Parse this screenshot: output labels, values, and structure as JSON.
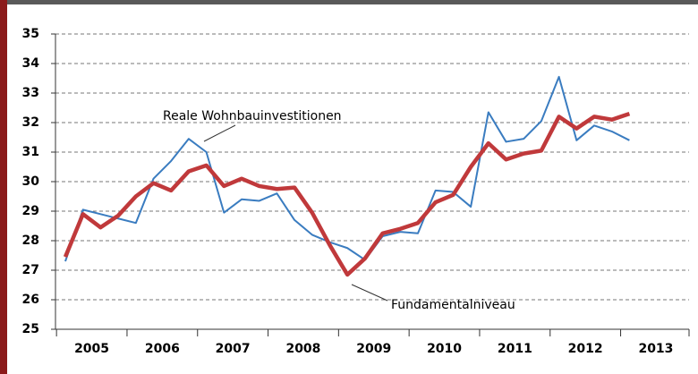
{
  "chart_data": {
    "type": "line",
    "categories": [
      "2005",
      null,
      null,
      null,
      "2006",
      null,
      null,
      null,
      "2007",
      null,
      null,
      null,
      "2008",
      null,
      null,
      null,
      "2009",
      null,
      null,
      null,
      "2010",
      null,
      null,
      null,
      "2011",
      null,
      null,
      null,
      "2012",
      null,
      null,
      null,
      "2013"
    ],
    "series": [
      {
        "name": "Reale Wohnbauinvestitionen",
        "color": "#3a7cc0",
        "values": [
          27.3,
          29.05,
          28.9,
          28.75,
          28.6,
          30.1,
          30.7,
          31.45,
          31.0,
          28.95,
          29.4,
          29.35,
          29.6,
          28.7,
          28.2,
          27.95,
          27.75,
          27.35,
          28.15,
          28.3,
          28.25,
          29.7,
          29.65,
          29.15,
          32.35,
          31.35,
          31.45,
          32.05,
          33.55,
          31.4,
          31.9,
          31.7,
          31.4
        ]
      },
      {
        "name": "Fundamentalniveau",
        "color": "#c0393b",
        "values": [
          27.45,
          28.9,
          28.45,
          28.85,
          29.5,
          29.95,
          29.7,
          30.35,
          30.55,
          29.85,
          30.1,
          29.85,
          29.75,
          29.8,
          28.95,
          27.85,
          26.85,
          27.4,
          28.25,
          28.4,
          28.6,
          29.3,
          29.55,
          30.5,
          31.3,
          30.75,
          30.95,
          31.05,
          32.2,
          31.8,
          32.2,
          32.1,
          32.3
        ]
      }
    ],
    "ylim": [
      25,
      35
    ],
    "yticks": [
      25,
      26,
      27,
      28,
      29,
      30,
      31,
      32,
      33,
      34,
      35
    ],
    "grid": true
  }
}
